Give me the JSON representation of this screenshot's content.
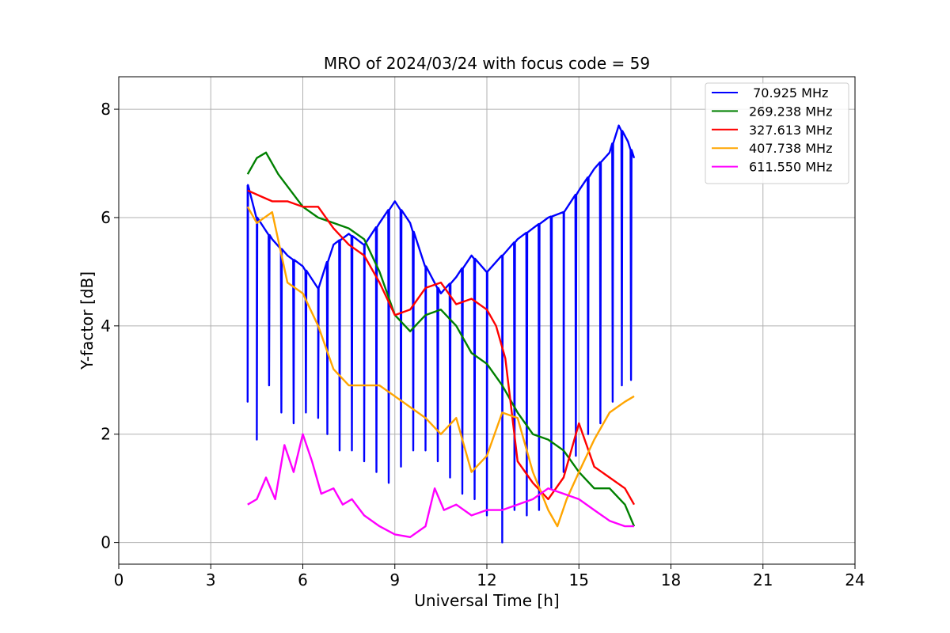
{
  "chart_data": {
    "type": "line",
    "title": "MRO of 2024/03/24 with focus code = 59",
    "xlabel": "Universal Time [h]",
    "ylabel": "Y-factor [dB]",
    "xlim": [
      0,
      24
    ],
    "ylim": [
      -0.4,
      8.6
    ],
    "xticks": [
      0,
      3,
      6,
      9,
      12,
      15,
      18,
      21,
      24
    ],
    "xtick_labels": [
      "0",
      "3",
      "6",
      "9",
      "12",
      "15",
      "18",
      "21",
      "24"
    ],
    "yticks": [
      0,
      2,
      4,
      6,
      8
    ],
    "ytick_labels": [
      "0",
      "2",
      "4",
      "6",
      "8"
    ],
    "grid": true,
    "legend_position": "top-right",
    "series": [
      {
        "name": " 70.925 MHz",
        "color": "#0000ff",
        "x": [
          4.2,
          4.5,
          5.0,
          5.5,
          6.0,
          6.5,
          7.0,
          7.5,
          8.0,
          8.5,
          9.0,
          9.5,
          10.0,
          10.5,
          11.0,
          11.5,
          12.0,
          12.5,
          13.0,
          13.5,
          14.0,
          14.5,
          15.0,
          15.5,
          16.0,
          16.3,
          16.6,
          16.8
        ],
        "y": [
          6.6,
          6.0,
          5.6,
          5.3,
          5.1,
          4.7,
          5.5,
          5.7,
          5.5,
          5.9,
          6.3,
          5.9,
          5.1,
          4.6,
          4.9,
          5.3,
          5.0,
          5.3,
          5.6,
          5.8,
          6.0,
          6.1,
          6.5,
          6.9,
          7.2,
          7.7,
          7.4,
          7.1
        ],
        "dips": [
          {
            "x": 4.2,
            "y": 2.6
          },
          {
            "x": 4.5,
            "y": 1.9
          },
          {
            "x": 4.9,
            "y": 2.9
          },
          {
            "x": 5.3,
            "y": 2.4
          },
          {
            "x": 5.7,
            "y": 2.2
          },
          {
            "x": 6.1,
            "y": 2.4
          },
          {
            "x": 6.5,
            "y": 2.3
          },
          {
            "x": 6.8,
            "y": 2.0
          },
          {
            "x": 7.2,
            "y": 1.7
          },
          {
            "x": 7.6,
            "y": 1.7
          },
          {
            "x": 8.0,
            "y": 1.5
          },
          {
            "x": 8.4,
            "y": 1.3
          },
          {
            "x": 8.8,
            "y": 1.1
          },
          {
            "x": 9.2,
            "y": 1.4
          },
          {
            "x": 9.6,
            "y": 1.7
          },
          {
            "x": 10.0,
            "y": 1.7
          },
          {
            "x": 10.4,
            "y": 1.5
          },
          {
            "x": 10.8,
            "y": 1.2
          },
          {
            "x": 11.2,
            "y": 0.9
          },
          {
            "x": 11.6,
            "y": 0.8
          },
          {
            "x": 12.0,
            "y": 0.5
          },
          {
            "x": 12.5,
            "y": 0.0
          },
          {
            "x": 12.9,
            "y": 0.6
          },
          {
            "x": 13.3,
            "y": 0.5
          },
          {
            "x": 13.7,
            "y": 0.6
          },
          {
            "x": 14.1,
            "y": 1.0
          },
          {
            "x": 14.5,
            "y": 1.3
          },
          {
            "x": 14.9,
            "y": 1.6
          },
          {
            "x": 15.3,
            "y": 2.0
          },
          {
            "x": 15.7,
            "y": 2.2
          },
          {
            "x": 16.1,
            "y": 2.6
          },
          {
            "x": 16.4,
            "y": 2.9
          },
          {
            "x": 16.7,
            "y": 3.0
          }
        ]
      },
      {
        "name": "269.238 MHz",
        "color": "#008000",
        "x": [
          4.2,
          4.5,
          4.8,
          5.2,
          5.6,
          6.0,
          6.5,
          7.0,
          7.5,
          8.0,
          8.5,
          9.0,
          9.5,
          10.0,
          10.5,
          11.0,
          11.5,
          12.0,
          12.5,
          13.0,
          13.5,
          14.0,
          14.5,
          15.0,
          15.5,
          16.0,
          16.5,
          16.8
        ],
        "y": [
          6.8,
          7.1,
          7.2,
          6.8,
          6.5,
          6.2,
          6.0,
          5.9,
          5.8,
          5.6,
          5.0,
          4.2,
          3.9,
          4.2,
          4.3,
          4.0,
          3.5,
          3.3,
          2.9,
          2.4,
          2.0,
          1.9,
          1.7,
          1.3,
          1.0,
          1.0,
          0.7,
          0.3
        ]
      },
      {
        "name": "327.613 MHz",
        "color": "#ff0000",
        "x": [
          4.2,
          4.6,
          5.0,
          5.5,
          6.0,
          6.5,
          7.0,
          7.5,
          8.0,
          8.5,
          9.0,
          9.5,
          10.0,
          10.5,
          11.0,
          11.5,
          12.0,
          12.3,
          12.6,
          13.0,
          13.5,
          14.0,
          14.5,
          15.0,
          15.5,
          16.0,
          16.5,
          16.8
        ],
        "y": [
          6.5,
          6.4,
          6.3,
          6.3,
          6.2,
          6.2,
          5.8,
          5.5,
          5.3,
          4.8,
          4.2,
          4.3,
          4.7,
          4.8,
          4.4,
          4.5,
          4.3,
          4.0,
          3.4,
          1.5,
          1.1,
          0.8,
          1.2,
          2.2,
          1.4,
          1.2,
          1.0,
          0.7
        ]
      },
      {
        "name": "407.738 MHz",
        "color": "#ffa500",
        "x": [
          4.2,
          4.5,
          5.0,
          5.5,
          6.0,
          6.5,
          7.0,
          7.5,
          8.0,
          8.5,
          9.0,
          9.5,
          10.0,
          10.5,
          11.0,
          11.5,
          12.0,
          12.5,
          13.0,
          13.5,
          14.0,
          14.3,
          14.6,
          15.0,
          15.5,
          16.0,
          16.5,
          16.8
        ],
        "y": [
          6.2,
          5.9,
          6.1,
          4.8,
          4.6,
          4.0,
          3.2,
          2.9,
          2.9,
          2.9,
          2.7,
          2.5,
          2.3,
          2.0,
          2.3,
          1.3,
          1.6,
          2.4,
          2.3,
          1.3,
          0.6,
          0.3,
          0.8,
          1.3,
          1.9,
          2.4,
          2.6,
          2.7
        ]
      },
      {
        "name": "611.550 MHz",
        "color": "#ff00ff",
        "x": [
          4.2,
          4.5,
          4.8,
          5.1,
          5.4,
          5.7,
          6.0,
          6.3,
          6.6,
          7.0,
          7.3,
          7.6,
          8.0,
          8.5,
          9.0,
          9.5,
          10.0,
          10.3,
          10.6,
          11.0,
          11.5,
          12.0,
          12.5,
          13.0,
          13.5,
          14.0,
          14.5,
          15.0,
          15.5,
          16.0,
          16.5,
          16.8
        ],
        "y": [
          0.7,
          0.8,
          1.2,
          0.8,
          1.8,
          1.3,
          2.0,
          1.5,
          0.9,
          1.0,
          0.7,
          0.8,
          0.5,
          0.3,
          0.15,
          0.1,
          0.3,
          1.0,
          0.6,
          0.7,
          0.5,
          0.6,
          0.6,
          0.7,
          0.8,
          1.0,
          0.9,
          0.8,
          0.6,
          0.4,
          0.3,
          0.3
        ]
      }
    ]
  }
}
